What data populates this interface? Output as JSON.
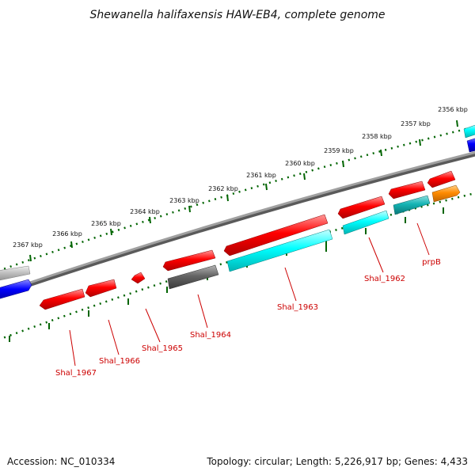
{
  "title": "Shewanella halifaxensis HAW-EB4, complete genome",
  "footer": {
    "accession": "Accession: NC_010334",
    "summary": "Topology: circular; Length: 5,226,917 bp; Genes: 4,433"
  },
  "colors": {
    "gene_red": "#ff0000",
    "gene_cyan": "#00ffff",
    "gene_teal": "#14b4b4",
    "gene_gray": "#646464",
    "gene_lightgray": "#bebebe",
    "gene_blue": "#0000ff",
    "gene_orange": "#ff8c00",
    "label_red": "#cc0000",
    "tick_green": "#006400",
    "backbone": "#828282"
  },
  "scale_ticks": [
    {
      "kbp": 2356,
      "label": "2356 kbp"
    },
    {
      "kbp": 2357,
      "label": "2357 kbp"
    },
    {
      "kbp": 2358,
      "label": "2358 kbp"
    },
    {
      "kbp": 2359,
      "label": "2359 kbp"
    },
    {
      "kbp": 2360,
      "label": "2360 kbp"
    },
    {
      "kbp": 2361,
      "label": "2361 kbp"
    },
    {
      "kbp": 2362,
      "label": "2362 kbp"
    },
    {
      "kbp": 2363,
      "label": "2363 kbp"
    },
    {
      "kbp": 2364,
      "label": "2364 kbp"
    },
    {
      "kbp": 2365,
      "label": "2365 kbp"
    },
    {
      "kbp": 2366,
      "label": "2366 kbp"
    },
    {
      "kbp": 2367,
      "label": "2367 kbp"
    }
  ],
  "labels": {
    "Shal_1962": "Shal_1962",
    "Shal_1963": "Shal_1963",
    "Shal_1964": "Shal_1964",
    "Shal_1965": "Shal_1965",
    "Shal_1966": "Shal_1966",
    "Shal_1967": "Shal_1967",
    "prpB": "prpB"
  }
}
